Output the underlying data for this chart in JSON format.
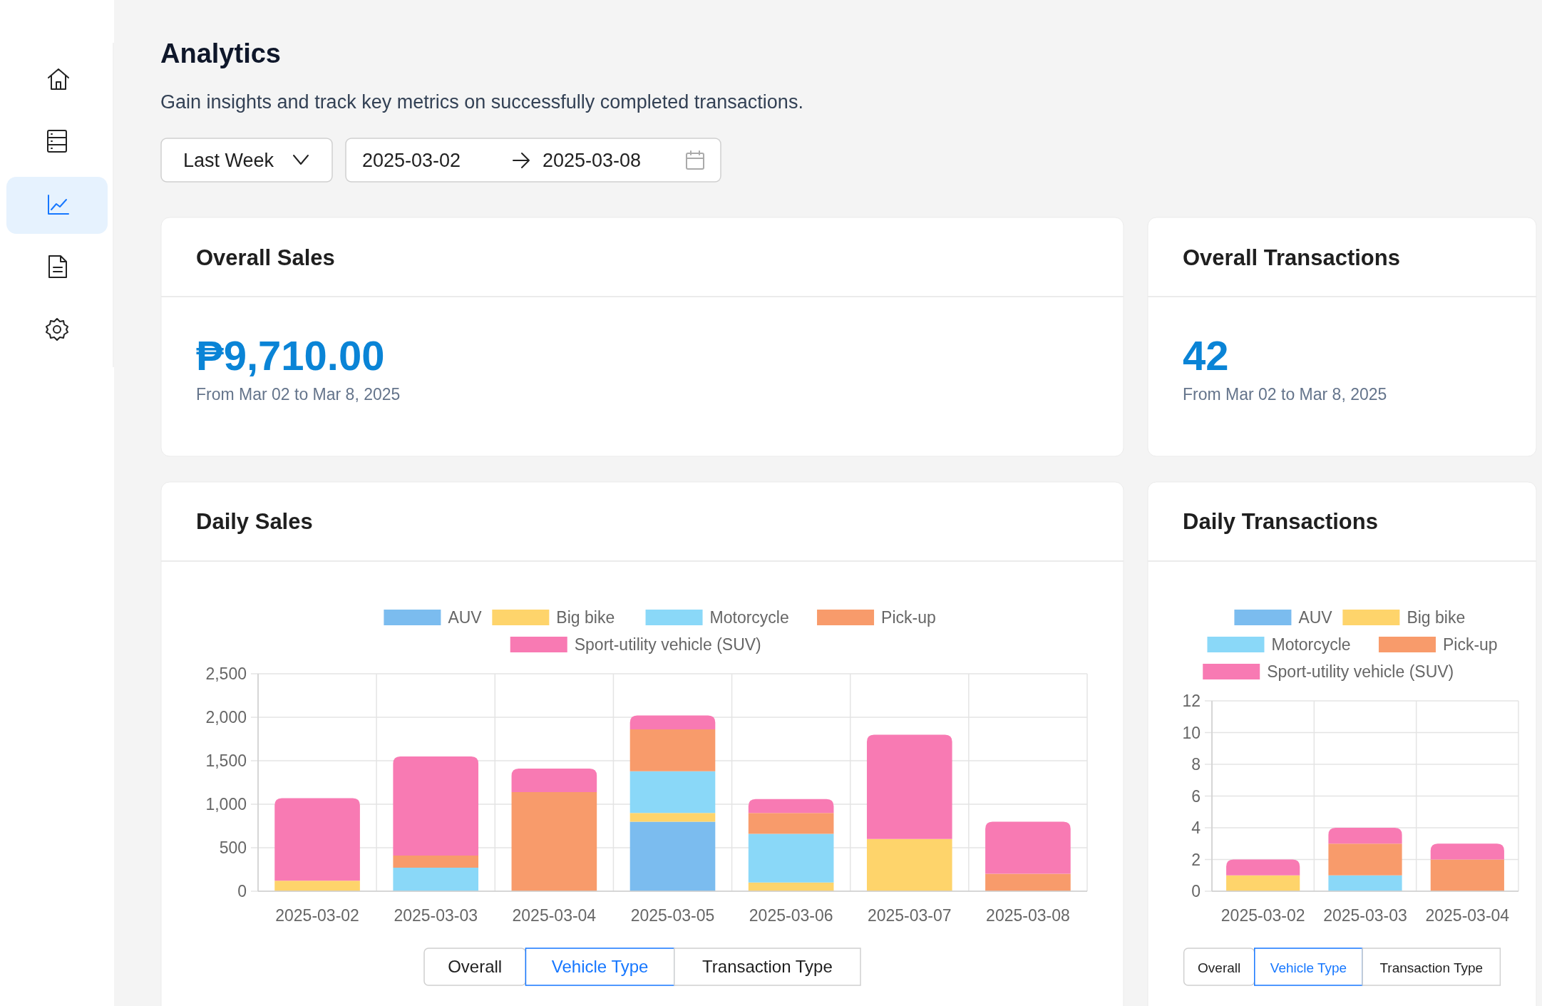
{
  "chart_data": [
    {
      "type": "other",
      "title": "Analytics",
      "subtitle": "Gain insights and track key metrics on successfully completed transactions.",
      "annotations": [
        "Last Week",
        "2025-03-02",
        "2025-03-08"
      ]
    },
    {
      "type": "other",
      "title": "Overall Sales",
      "annotations": [
        "₱9,710.00",
        "From Mar 02 to Mar 8, 2025"
      ]
    },
    {
      "type": "other",
      "title": "Overall Transactions",
      "annotations": [
        "42",
        "From Mar 02 to Mar 8, 2025"
      ]
    },
    {
      "type": "bar",
      "title": "Daily Sales",
      "stacked": true,
      "grid": true,
      "legend": "top",
      "categories": [
        "2025-03-02",
        "2025-03-03",
        "2025-03-04",
        "2025-03-05",
        "2025-03-06",
        "2025-03-07",
        "2025-03-08"
      ],
      "series": [
        {
          "name": "AUV",
          "color": "#7bbcef",
          "values": [
            0,
            0,
            0,
            800,
            0,
            0,
            0
          ]
        },
        {
          "name": "Big bike",
          "color": "#fed46b",
          "values": [
            120,
            0,
            0,
            100,
            100,
            600,
            0
          ]
        },
        {
          "name": "Motorcycle",
          "color": "#8ad8f8",
          "values": [
            0,
            270,
            0,
            480,
            560,
            0,
            0
          ]
        },
        {
          "name": "Pick-up",
          "color": "#f89b6b",
          "values": [
            0,
            140,
            1140,
            480,
            240,
            0,
            200
          ]
        },
        {
          "name": "Sport-utility vehicle (SUV)",
          "color": "#f87ab3",
          "values": [
            950,
            1140,
            270,
            160,
            160,
            1200,
            600
          ]
        }
      ],
      "ylim": [
        0,
        2500
      ],
      "yticks": [
        0,
        500,
        {
          "value": 1000,
          "label": "1,000"
        },
        {
          "value": 1500,
          "label": "1,500"
        },
        {
          "value": 2000,
          "label": "2,000"
        },
        {
          "value": 2500,
          "label": "2,500"
        }
      ],
      "annotations": [
        "Overall",
        "Vehicle Type",
        "Transaction Type"
      ]
    },
    {
      "type": "bar",
      "title": "Daily Transactions",
      "stacked": true,
      "grid": true,
      "legend": "top",
      "categories": [
        "2025-03-02",
        "2025-03-03",
        "2025-03-04"
      ],
      "series": [
        {
          "name": "AUV",
          "color": "#7bbcef",
          "values": [
            0,
            0,
            0
          ]
        },
        {
          "name": "Big bike",
          "color": "#fed46b",
          "values": [
            1,
            0,
            0
          ]
        },
        {
          "name": "Motorcycle",
          "color": "#8ad8f8",
          "values": [
            0,
            1,
            0
          ]
        },
        {
          "name": "Pick-up",
          "color": "#f89b6b",
          "values": [
            0,
            2,
            2
          ]
        },
        {
          "name": "Sport-utility vehicle (SUV)",
          "color": "#f87ab3",
          "values": [
            1,
            1,
            1
          ]
        }
      ],
      "ylim": [
        0,
        12
      ],
      "yticks": [
        0,
        2,
        4,
        6,
        8,
        10,
        12
      ],
      "annotations": [
        "Overall",
        "Vehicle Type",
        "Transaction Type"
      ]
    }
  ]
}
